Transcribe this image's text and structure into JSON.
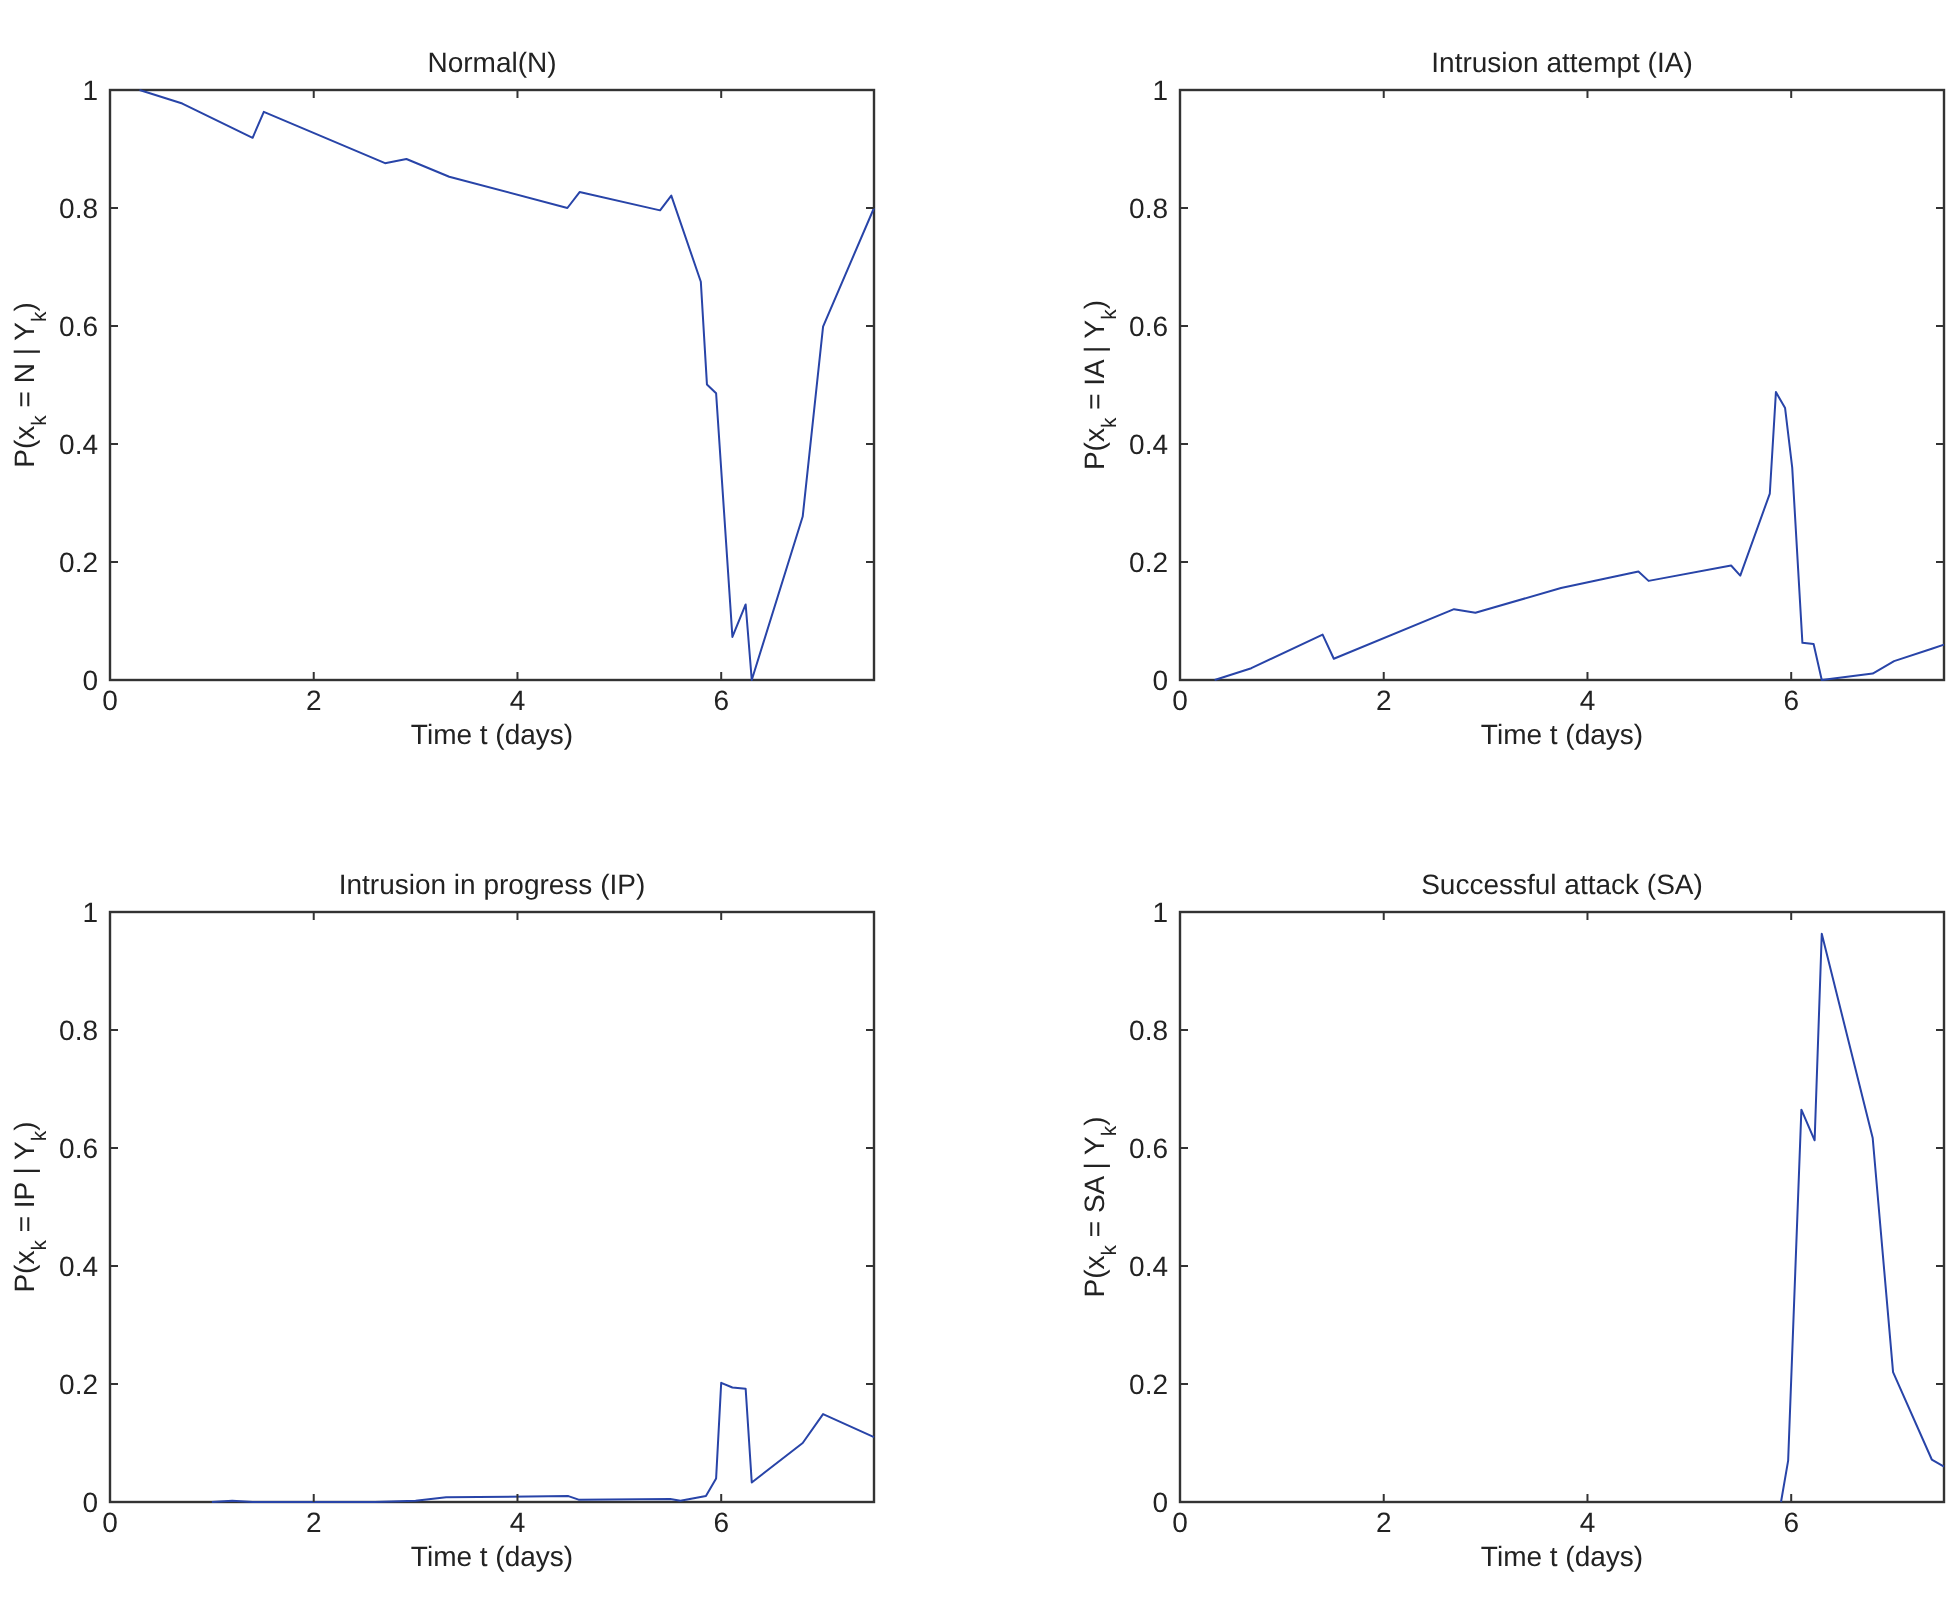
{
  "chart_data": [
    {
      "type": "line",
      "title": "Normal(N)",
      "xlabel": "Time t (days)",
      "ylabel": "P(x$_{k}$ = N | Y$_{k}$)",
      "xlim": [
        0,
        7.5
      ],
      "xticks": [
        0,
        2,
        4,
        6
      ],
      "ylim": [
        0,
        1
      ],
      "yticks": [
        0,
        0.2,
        0.4,
        0.6,
        0.8,
        1
      ],
      "series": [
        {
          "color": "#2844a8",
          "x": [
            0.29,
            0.71,
            1.4,
            1.51,
            2.7,
            2.91,
            3.33,
            4.49,
            4.61,
            5.4,
            5.51,
            5.8,
            5.86,
            5.95,
            6.11,
            6.24,
            6.3,
            6.8,
            7.0,
            7.5
          ],
          "values": [
            1,
            0.977,
            0.919,
            0.963,
            0.876,
            0.883,
            0.853,
            0.8,
            0.827,
            0.796,
            0.821,
            0.675,
            0.501,
            0.486,
            0.073,
            0.128,
            0,
            0.277,
            0.599,
            0.8
          ]
        }
      ]
    },
    {
      "type": "line",
      "title": "Intrusion attempt (IA)",
      "xlabel": "Time t (days)",
      "ylabel": "P(x$_{k}$ = IA | Y$_{k}$)",
      "xlim": [
        0,
        7.5
      ],
      "xticks": [
        0,
        2,
        4,
        6
      ],
      "ylim": [
        0,
        1
      ],
      "yticks": [
        0,
        0.2,
        0.4,
        0.6,
        0.8,
        1
      ],
      "series": [
        {
          "color": "#2844a8",
          "x": [
            0.34,
            0.7,
            1.4,
            1.51,
            2.69,
            2.9,
            3.74,
            4.5,
            4.6,
            5.41,
            5.5,
            5.79,
            5.85,
            5.94,
            6.01,
            6.11,
            6.22,
            6.3,
            6.8,
            7.01,
            7.38,
            7.5
          ],
          "values": [
            0,
            0.02,
            0.077,
            0.036,
            0.12,
            0.114,
            0.156,
            0.184,
            0.168,
            0.194,
            0.177,
            0.316,
            0.488,
            0.461,
            0.36,
            0.063,
            0.061,
            0,
            0.011,
            0.032,
            0.053,
            0.06
          ]
        }
      ]
    },
    {
      "type": "line",
      "title": "Intrusion in progress (IP)",
      "xlabel": "Time t (days)",
      "ylabel": "P(x$_{k}$ = IP | Y$_{k}$)",
      "xlim": [
        0,
        7.5
      ],
      "xticks": [
        0,
        2,
        4,
        6
      ],
      "ylim": [
        0,
        1
      ],
      "yticks": [
        0,
        0.2,
        0.4,
        0.6,
        0.8,
        1
      ],
      "series": [
        {
          "color": "#2844a8",
          "x": [
            1.0,
            1.2,
            1.4,
            2.6,
            3.0,
            3.3,
            4.5,
            4.6,
            5.5,
            5.6,
            5.85,
            5.95,
            6.0,
            6.11,
            6.24,
            6.3,
            6.8,
            7.0,
            7.5
          ],
          "values": [
            0,
            0.002,
            0,
            0,
            0.002,
            0.008,
            0.01,
            0.004,
            0.005,
            0.002,
            0.01,
            0.04,
            0.202,
            0.194,
            0.192,
            0.033,
            0.1,
            0.149,
            0.11
          ]
        }
      ]
    },
    {
      "type": "line",
      "title": "Successful attack (SA)",
      "xlabel": "Time t (days)",
      "ylabel": "P(x$_{k}$ = SA | Y$_{k}$)",
      "xlim": [
        0,
        7.5
      ],
      "xticks": [
        0,
        2,
        4,
        6
      ],
      "ylim": [
        0,
        1
      ],
      "yticks": [
        0,
        0.2,
        0.4,
        0.6,
        0.8,
        1
      ],
      "series": [
        {
          "color": "#2844a8",
          "x": [
            5.9,
            5.97,
            6.1,
            6.23,
            6.3,
            6.8,
            7.0,
            7.38,
            7.5
          ],
          "values": [
            0,
            0.07,
            0.665,
            0.613,
            0.963,
            0.617,
            0.22,
            0.072,
            0.06
          ]
        }
      ]
    }
  ]
}
